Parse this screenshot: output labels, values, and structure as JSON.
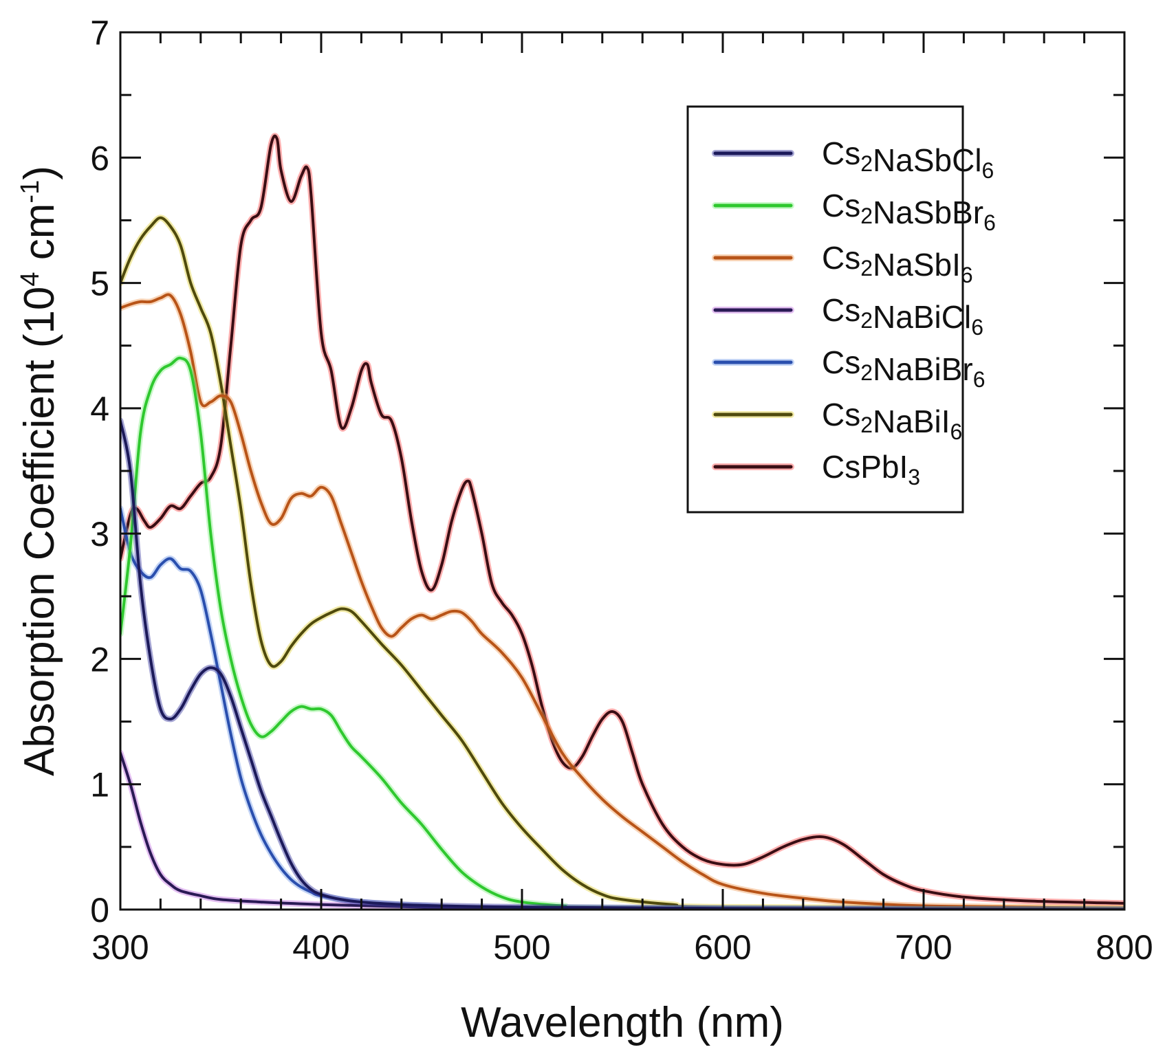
{
  "chart_data": {
    "type": "line",
    "title": "",
    "xlabel": "Wavelength (nm)",
    "ylabel": {
      "main": "Absorption Coefficient (10",
      "exp": "4",
      "unit": " cm",
      "unit_exp": "-1",
      "close": ")"
    },
    "xlim": [
      300,
      800
    ],
    "ylim": [
      0,
      7
    ],
    "x_ticks": [
      300,
      400,
      500,
      600,
      700,
      800
    ],
    "x_tick_labels": [
      "300",
      "400",
      "500",
      "600",
      "700",
      "800"
    ],
    "y_ticks": [
      0,
      1,
      2,
      3,
      4,
      5,
      6,
      7
    ],
    "y_tick_labels": [
      "0",
      "1",
      "2",
      "3",
      "4",
      "5",
      "6",
      "7"
    ],
    "grid": false,
    "legend_position": "top-right",
    "series": [
      {
        "name": "Cs2NaSbCl6",
        "label_parts": [
          {
            "t": "Cs"
          },
          {
            "t": "2",
            "sub": true
          },
          {
            "t": "NaSbCl"
          },
          {
            "t": "6",
            "sub": true
          }
        ],
        "color": "#1c1a5a",
        "glow": "#3a3aa0",
        "points": [
          [
            300,
            3.9
          ],
          [
            305,
            3.5
          ],
          [
            310,
            2.6
          ],
          [
            315,
            2.0
          ],
          [
            320,
            1.6
          ],
          [
            325,
            1.52
          ],
          [
            330,
            1.6
          ],
          [
            335,
            1.75
          ],
          [
            340,
            1.88
          ],
          [
            345,
            1.93
          ],
          [
            350,
            1.88
          ],
          [
            355,
            1.7
          ],
          [
            360,
            1.45
          ],
          [
            365,
            1.2
          ],
          [
            370,
            0.95
          ],
          [
            375,
            0.75
          ],
          [
            380,
            0.55
          ],
          [
            385,
            0.37
          ],
          [
            390,
            0.24
          ],
          [
            395,
            0.16
          ],
          [
            400,
            0.12
          ],
          [
            410,
            0.08
          ],
          [
            420,
            0.06
          ],
          [
            440,
            0.04
          ],
          [
            460,
            0.03
          ],
          [
            500,
            0.02
          ],
          [
            600,
            0.01
          ],
          [
            800,
            0.0
          ]
        ]
      },
      {
        "name": "Cs2NaSbBr6",
        "label_parts": [
          {
            "t": "Cs"
          },
          {
            "t": "2",
            "sub": true
          },
          {
            "t": "NaSbBr"
          },
          {
            "t": "6",
            "sub": true
          }
        ],
        "color": "#2fc82f",
        "glow": "#8af08a",
        "points": [
          [
            300,
            2.2
          ],
          [
            305,
            2.9
          ],
          [
            310,
            3.8
          ],
          [
            315,
            4.15
          ],
          [
            320,
            4.3
          ],
          [
            325,
            4.35
          ],
          [
            330,
            4.4
          ],
          [
            335,
            4.3
          ],
          [
            340,
            3.8
          ],
          [
            345,
            3.0
          ],
          [
            350,
            2.4
          ],
          [
            355,
            2.0
          ],
          [
            360,
            1.7
          ],
          [
            365,
            1.48
          ],
          [
            370,
            1.38
          ],
          [
            375,
            1.42
          ],
          [
            380,
            1.5
          ],
          [
            385,
            1.58
          ],
          [
            390,
            1.62
          ],
          [
            395,
            1.6
          ],
          [
            400,
            1.6
          ],
          [
            405,
            1.55
          ],
          [
            410,
            1.42
          ],
          [
            415,
            1.3
          ],
          [
            420,
            1.22
          ],
          [
            430,
            1.05
          ],
          [
            440,
            0.85
          ],
          [
            450,
            0.68
          ],
          [
            460,
            0.48
          ],
          [
            470,
            0.3
          ],
          [
            480,
            0.18
          ],
          [
            490,
            0.1
          ],
          [
            500,
            0.06
          ],
          [
            520,
            0.03
          ],
          [
            550,
            0.01
          ],
          [
            800,
            0.0
          ]
        ]
      },
      {
        "name": "Cs2NaSbI6",
        "label_parts": [
          {
            "t": "Cs"
          },
          {
            "t": "2",
            "sub": true
          },
          {
            "t": "NaSbI"
          },
          {
            "t": "6",
            "sub": true
          }
        ],
        "color": "#b85418",
        "glow": "#f0a060",
        "points": [
          [
            300,
            4.8
          ],
          [
            305,
            4.83
          ],
          [
            310,
            4.85
          ],
          [
            315,
            4.85
          ],
          [
            320,
            4.88
          ],
          [
            325,
            4.9
          ],
          [
            330,
            4.75
          ],
          [
            335,
            4.45
          ],
          [
            340,
            4.05
          ],
          [
            345,
            4.05
          ],
          [
            350,
            4.1
          ],
          [
            355,
            4.05
          ],
          [
            360,
            3.8
          ],
          [
            365,
            3.5
          ],
          [
            370,
            3.25
          ],
          [
            375,
            3.08
          ],
          [
            380,
            3.12
          ],
          [
            385,
            3.28
          ],
          [
            390,
            3.32
          ],
          [
            395,
            3.3
          ],
          [
            400,
            3.37
          ],
          [
            405,
            3.3
          ],
          [
            410,
            3.08
          ],
          [
            415,
            2.85
          ],
          [
            420,
            2.62
          ],
          [
            425,
            2.42
          ],
          [
            430,
            2.25
          ],
          [
            435,
            2.18
          ],
          [
            440,
            2.25
          ],
          [
            445,
            2.32
          ],
          [
            450,
            2.35
          ],
          [
            455,
            2.32
          ],
          [
            460,
            2.35
          ],
          [
            465,
            2.38
          ],
          [
            470,
            2.37
          ],
          [
            475,
            2.3
          ],
          [
            480,
            2.2
          ],
          [
            490,
            2.05
          ],
          [
            500,
            1.85
          ],
          [
            510,
            1.55
          ],
          [
            520,
            1.25
          ],
          [
            530,
            1.05
          ],
          [
            540,
            0.88
          ],
          [
            550,
            0.74
          ],
          [
            560,
            0.62
          ],
          [
            570,
            0.5
          ],
          [
            580,
            0.38
          ],
          [
            590,
            0.28
          ],
          [
            600,
            0.2
          ],
          [
            620,
            0.13
          ],
          [
            640,
            0.09
          ],
          [
            660,
            0.06
          ],
          [
            700,
            0.03
          ],
          [
            750,
            0.02
          ],
          [
            800,
            0.01
          ]
        ]
      },
      {
        "name": "Cs2NaBiCl6",
        "label_parts": [
          {
            "t": "Cs"
          },
          {
            "t": "2",
            "sub": true
          },
          {
            "t": "NaBiCl"
          },
          {
            "t": "6",
            "sub": true
          }
        ],
        "color": "#2a1a55",
        "glow": "#c070e0",
        "points": [
          [
            300,
            1.25
          ],
          [
            305,
            1.0
          ],
          [
            310,
            0.7
          ],
          [
            315,
            0.45
          ],
          [
            320,
            0.28
          ],
          [
            325,
            0.2
          ],
          [
            330,
            0.15
          ],
          [
            340,
            0.11
          ],
          [
            350,
            0.08
          ],
          [
            370,
            0.06
          ],
          [
            400,
            0.04
          ],
          [
            450,
            0.02
          ],
          [
            500,
            0.01
          ],
          [
            800,
            0.0
          ]
        ]
      },
      {
        "name": "Cs2NaBiBr6",
        "label_parts": [
          {
            "t": "Cs"
          },
          {
            "t": "2",
            "sub": true
          },
          {
            "t": "NaBiBr"
          },
          {
            "t": "6",
            "sub": true
          }
        ],
        "color": "#2a4fae",
        "glow": "#7aa0e8",
        "points": [
          [
            300,
            3.2
          ],
          [
            305,
            2.85
          ],
          [
            310,
            2.7
          ],
          [
            315,
            2.65
          ],
          [
            320,
            2.75
          ],
          [
            325,
            2.8
          ],
          [
            330,
            2.72
          ],
          [
            335,
            2.7
          ],
          [
            340,
            2.55
          ],
          [
            345,
            2.2
          ],
          [
            350,
            1.8
          ],
          [
            355,
            1.4
          ],
          [
            360,
            1.05
          ],
          [
            365,
            0.8
          ],
          [
            370,
            0.6
          ],
          [
            375,
            0.45
          ],
          [
            380,
            0.33
          ],
          [
            385,
            0.24
          ],
          [
            390,
            0.18
          ],
          [
            395,
            0.14
          ],
          [
            400,
            0.11
          ],
          [
            420,
            0.06
          ],
          [
            450,
            0.03
          ],
          [
            500,
            0.01
          ],
          [
            800,
            0.0
          ]
        ]
      },
      {
        "name": "Cs2NaBiI6",
        "label_parts": [
          {
            "t": "Cs"
          },
          {
            "t": "2",
            "sub": true
          },
          {
            "t": "NaBiI"
          },
          {
            "t": "6",
            "sub": true
          }
        ],
        "color": "#4f4a0c",
        "glow": "#e0d040",
        "points": [
          [
            300,
            5.0
          ],
          [
            305,
            5.2
          ],
          [
            310,
            5.35
          ],
          [
            315,
            5.45
          ],
          [
            320,
            5.52
          ],
          [
            325,
            5.45
          ],
          [
            330,
            5.3
          ],
          [
            335,
            5.0
          ],
          [
            340,
            4.8
          ],
          [
            345,
            4.6
          ],
          [
            350,
            4.2
          ],
          [
            355,
            3.7
          ],
          [
            360,
            3.2
          ],
          [
            365,
            2.6
          ],
          [
            370,
            2.15
          ],
          [
            375,
            1.95
          ],
          [
            380,
            1.98
          ],
          [
            385,
            2.1
          ],
          [
            390,
            2.2
          ],
          [
            395,
            2.28
          ],
          [
            400,
            2.33
          ],
          [
            405,
            2.37
          ],
          [
            410,
            2.4
          ],
          [
            415,
            2.38
          ],
          [
            420,
            2.3
          ],
          [
            430,
            2.12
          ],
          [
            440,
            1.95
          ],
          [
            450,
            1.75
          ],
          [
            460,
            1.55
          ],
          [
            470,
            1.35
          ],
          [
            480,
            1.1
          ],
          [
            490,
            0.85
          ],
          [
            500,
            0.65
          ],
          [
            510,
            0.48
          ],
          [
            520,
            0.32
          ],
          [
            530,
            0.2
          ],
          [
            540,
            0.12
          ],
          [
            550,
            0.08
          ],
          [
            575,
            0.04
          ],
          [
            600,
            0.02
          ],
          [
            800,
            0.01
          ]
        ]
      },
      {
        "name": "CsPbI3",
        "label_parts": [
          {
            "t": "CsPbI"
          },
          {
            "t": "3",
            "sub": true
          }
        ],
        "color": "#3a0e14",
        "glow": "#ff5050",
        "points": [
          [
            300,
            2.8
          ],
          [
            305,
            3.15
          ],
          [
            308,
            3.2
          ],
          [
            312,
            3.1
          ],
          [
            315,
            3.05
          ],
          [
            320,
            3.12
          ],
          [
            325,
            3.22
          ],
          [
            330,
            3.2
          ],
          [
            335,
            3.3
          ],
          [
            340,
            3.4
          ],
          [
            345,
            3.45
          ],
          [
            350,
            3.7
          ],
          [
            355,
            4.5
          ],
          [
            360,
            5.3
          ],
          [
            365,
            5.5
          ],
          [
            370,
            5.6
          ],
          [
            375,
            6.1
          ],
          [
            378,
            6.15
          ],
          [
            380,
            5.9
          ],
          [
            385,
            5.65
          ],
          [
            390,
            5.85
          ],
          [
            393,
            5.92
          ],
          [
            395,
            5.7
          ],
          [
            400,
            4.6
          ],
          [
            405,
            4.3
          ],
          [
            410,
            3.85
          ],
          [
            415,
            4.0
          ],
          [
            420,
            4.3
          ],
          [
            423,
            4.35
          ],
          [
            425,
            4.2
          ],
          [
            430,
            3.95
          ],
          [
            435,
            3.9
          ],
          [
            440,
            3.6
          ],
          [
            445,
            3.1
          ],
          [
            450,
            2.7
          ],
          [
            455,
            2.55
          ],
          [
            460,
            2.75
          ],
          [
            465,
            3.1
          ],
          [
            470,
            3.35
          ],
          [
            473,
            3.42
          ],
          [
            475,
            3.35
          ],
          [
            480,
            3.0
          ],
          [
            485,
            2.6
          ],
          [
            490,
            2.45
          ],
          [
            495,
            2.35
          ],
          [
            500,
            2.2
          ],
          [
            505,
            1.95
          ],
          [
            510,
            1.62
          ],
          [
            515,
            1.35
          ],
          [
            520,
            1.18
          ],
          [
            525,
            1.13
          ],
          [
            530,
            1.22
          ],
          [
            535,
            1.38
          ],
          [
            540,
            1.52
          ],
          [
            545,
            1.58
          ],
          [
            550,
            1.5
          ],
          [
            555,
            1.25
          ],
          [
            560,
            1.0
          ],
          [
            570,
            0.68
          ],
          [
            580,
            0.5
          ],
          [
            590,
            0.4
          ],
          [
            600,
            0.36
          ],
          [
            610,
            0.36
          ],
          [
            620,
            0.42
          ],
          [
            630,
            0.5
          ],
          [
            640,
            0.56
          ],
          [
            650,
            0.58
          ],
          [
            660,
            0.52
          ],
          [
            670,
            0.4
          ],
          [
            680,
            0.28
          ],
          [
            690,
            0.2
          ],
          [
            700,
            0.15
          ],
          [
            720,
            0.1
          ],
          [
            750,
            0.07
          ],
          [
            800,
            0.05
          ]
        ]
      }
    ]
  }
}
